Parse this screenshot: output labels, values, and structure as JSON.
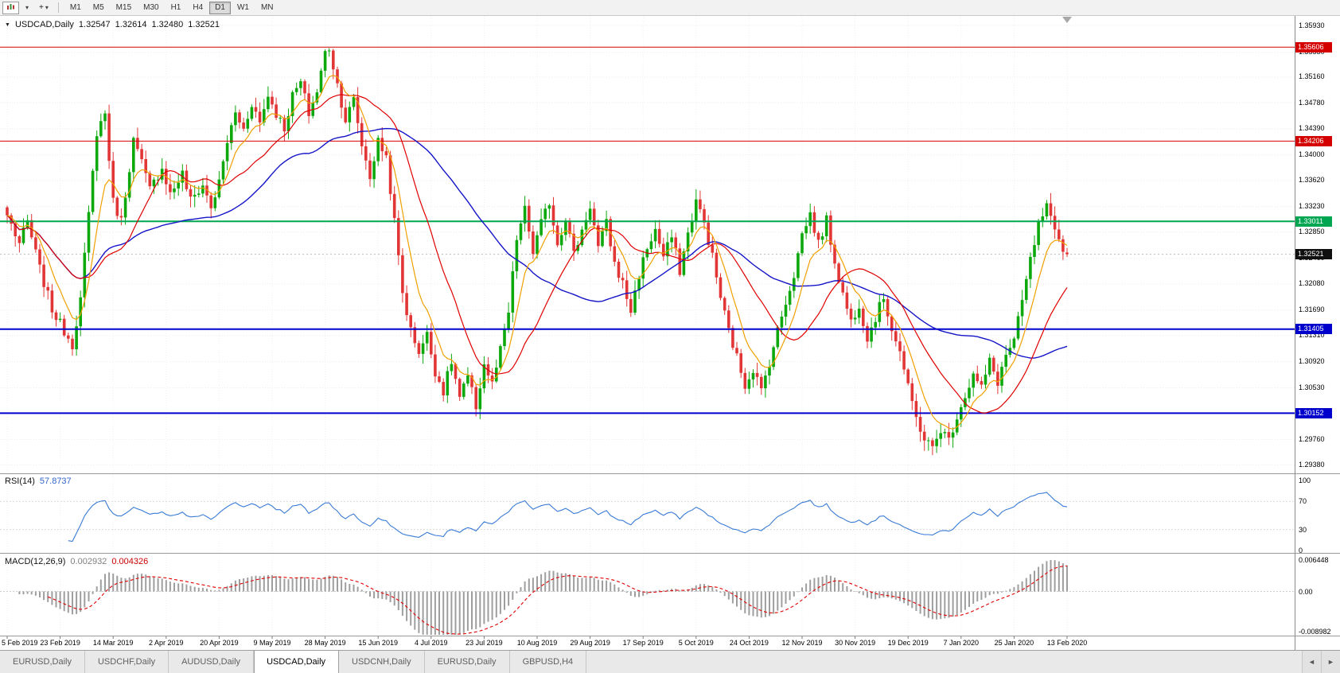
{
  "toolbar": {
    "dropdown_glyph": "▾",
    "cursor_glyph": "+",
    "timeframes": [
      {
        "label": "M1",
        "active": false
      },
      {
        "label": "M5",
        "active": false
      },
      {
        "label": "M15",
        "active": false
      },
      {
        "label": "M30",
        "active": false
      },
      {
        "label": "H1",
        "active": false
      },
      {
        "label": "H4",
        "active": false
      },
      {
        "label": "D1",
        "active": true
      },
      {
        "label": "W1",
        "active": false
      },
      {
        "label": "MN",
        "active": false
      }
    ]
  },
  "chart_header": {
    "collapse_glyph": "▼",
    "symbol": "USDCAD,Daily",
    "open": "1.32547",
    "high": "1.32614",
    "low": "1.32480",
    "close": "1.32521"
  },
  "price_axis": {
    "ticks": [
      "1.35930",
      "1.35530",
      "1.35160",
      "1.34780",
      "1.34390",
      "1.34000",
      "1.33620",
      "1.33230",
      "1.32850",
      "1.32460",
      "1.32080",
      "1.31690",
      "1.31310",
      "1.30920",
      "1.30530",
      "1.30150",
      "1.29760",
      "1.29380"
    ]
  },
  "levels": [
    {
      "value": "1.35606",
      "color": "#d40000",
      "width": 1,
      "type": "resistance"
    },
    {
      "value": "1.34206",
      "color": "#d40000",
      "width": 1,
      "type": "resistance"
    },
    {
      "value": "1.33011",
      "color": "#00a651",
      "width": 2,
      "type": "resistance"
    },
    {
      "value": "1.31405",
      "color": "#0000cd",
      "width": 2,
      "type": "support"
    },
    {
      "value": "1.30152",
      "color": "#0000cd",
      "width": 2,
      "type": "support"
    }
  ],
  "current_price": {
    "value": "1.32521",
    "badge_color": "#101010"
  },
  "rsi_panel": {
    "name": "RSI(14)",
    "value": "57.8737",
    "axis_ticks": [
      "100",
      "70",
      "30",
      "0"
    ]
  },
  "macd_panel": {
    "name": "MACD(12,26,9)",
    "main_value": "0.002932",
    "signal_value": "0.004326",
    "axis_ticks": [
      "0.006448",
      "0.00",
      "-0.008982"
    ]
  },
  "date_axis": [
    "5 Feb 2019",
    "23 Feb 2019",
    "14 Mar 2019",
    "2 Apr 2019",
    "20 Apr 2019",
    "9 May 2019",
    "28 May 2019",
    "15 Jun 2019",
    "4 Jul 2019",
    "23 Jul 2019",
    "10 Aug 2019",
    "29 Aug 2019",
    "17 Sep 2019",
    "5 Oct 2019",
    "24 Oct 2019",
    "12 Nov 2019",
    "30 Nov 2019",
    "19 Dec 2019",
    "7 Jan 2020",
    "25 Jan 2020",
    "13 Feb 2020"
  ],
  "tabs": {
    "items": [
      {
        "label": "EURUSD,Daily",
        "active": false
      },
      {
        "label": "USDCHF,Daily",
        "active": false
      },
      {
        "label": "AUDUSD,Daily",
        "active": false
      },
      {
        "label": "USDCAD,Daily",
        "active": true
      },
      {
        "label": "USDCNH,Daily",
        "active": false
      },
      {
        "label": "EURUSD,Daily",
        "active": false
      },
      {
        "label": "GBPUSD,H4",
        "active": false
      }
    ],
    "scroll_left_glyph": "◄",
    "scroll_right_glyph": "►"
  },
  "chart_data": {
    "type": "candlestick",
    "symbol": "USDCAD",
    "timeframe": "Daily",
    "num_candles": 261,
    "visible_range": {
      "price_top": 1.3593,
      "price_bottom": 1.2938,
      "date_start": "5 Feb 2019",
      "date_end": "13 Feb 2020"
    },
    "date_tick_every": 13,
    "last_candle": {
      "open": 1.32547,
      "high": 1.32614,
      "low": 1.3248,
      "close": 1.32521
    },
    "anchors": [
      [
        0,
        1.331
      ],
      [
        3,
        1.3268
      ],
      [
        5,
        1.33
      ],
      [
        8,
        1.323
      ],
      [
        11,
        1.317
      ],
      [
        13,
        1.3148
      ],
      [
        16,
        1.3118
      ],
      [
        18,
        1.3185
      ],
      [
        20,
        1.331
      ],
      [
        22,
        1.3435
      ],
      [
        24,
        1.3462
      ],
      [
        26,
        1.333
      ],
      [
        28,
        1.3302
      ],
      [
        31,
        1.3422
      ],
      [
        33,
        1.3388
      ],
      [
        35,
        1.3348
      ],
      [
        38,
        1.3382
      ],
      [
        40,
        1.3342
      ],
      [
        43,
        1.3372
      ],
      [
        45,
        1.3332
      ],
      [
        48,
        1.3355
      ],
      [
        50,
        1.3322
      ],
      [
        52,
        1.3358
      ],
      [
        54,
        1.342
      ],
      [
        56,
        1.3462
      ],
      [
        58,
        1.3438
      ],
      [
        60,
        1.3478
      ],
      [
        62,
        1.3448
      ],
      [
        64,
        1.349
      ],
      [
        66,
        1.3462
      ],
      [
        68,
        1.344
      ],
      [
        70,
        1.3488
      ],
      [
        72,
        1.3508
      ],
      [
        74,
        1.3462
      ],
      [
        76,
        1.3495
      ],
      [
        78,
        1.3552
      ],
      [
        79,
        1.356
      ],
      [
        81,
        1.3505
      ],
      [
        83,
        1.3452
      ],
      [
        85,
        1.3482
      ],
      [
        87,
        1.3415
      ],
      [
        89,
        1.3368
      ],
      [
        91,
        1.342
      ],
      [
        93,
        1.3398
      ],
      [
        95,
        1.33
      ],
      [
        97,
        1.3195
      ],
      [
        99,
        1.3138
      ],
      [
        101,
        1.3108
      ],
      [
        103,
        1.3132
      ],
      [
        105,
        1.3078
      ],
      [
        107,
        1.3048
      ],
      [
        109,
        1.3092
      ],
      [
        111,
        1.3038
      ],
      [
        113,
        1.3068
      ],
      [
        115,
        1.3025
      ],
      [
        117,
        1.3088
      ],
      [
        119,
        1.3058
      ],
      [
        121,
        1.3108
      ],
      [
        123,
        1.3165
      ],
      [
        125,
        1.3275
      ],
      [
        127,
        1.3318
      ],
      [
        129,
        1.3255
      ],
      [
        131,
        1.3298
      ],
      [
        133,
        1.333
      ],
      [
        135,
        1.3268
      ],
      [
        137,
        1.3308
      ],
      [
        139,
        1.3252
      ],
      [
        141,
        1.3288
      ],
      [
        143,
        1.3325
      ],
      [
        145,
        1.3262
      ],
      [
        147,
        1.3298
      ],
      [
        149,
        1.3238
      ],
      [
        151,
        1.3208
      ],
      [
        153,
        1.3168
      ],
      [
        155,
        1.3222
      ],
      [
        157,
        1.3262
      ],
      [
        159,
        1.3288
      ],
      [
        161,
        1.3248
      ],
      [
        163,
        1.3278
      ],
      [
        165,
        1.3228
      ],
      [
        167,
        1.3282
      ],
      [
        169,
        1.3332
      ],
      [
        171,
        1.3298
      ],
      [
        173,
        1.3248
      ],
      [
        175,
        1.3188
      ],
      [
        177,
        1.3138
      ],
      [
        179,
        1.3098
      ],
      [
        181,
        1.3058
      ],
      [
        183,
        1.3082
      ],
      [
        185,
        1.3048
      ],
      [
        187,
        1.3092
      ],
      [
        189,
        1.3138
      ],
      [
        191,
        1.3182
      ],
      [
        193,
        1.3222
      ],
      [
        195,
        1.3282
      ],
      [
        197,
        1.3312
      ],
      [
        199,
        1.3268
      ],
      [
        201,
        1.3302
      ],
      [
        203,
        1.3242
      ],
      [
        205,
        1.3192
      ],
      [
        207,
        1.3152
      ],
      [
        209,
        1.3178
      ],
      [
        211,
        1.3128
      ],
      [
        213,
        1.3158
      ],
      [
        215,
        1.3188
      ],
      [
        217,
        1.3142
      ],
      [
        219,
        1.3108
      ],
      [
        221,
        1.3052
      ],
      [
        223,
        1.3008
      ],
      [
        225,
        1.2978
      ],
      [
        227,
        1.2962
      ],
      [
        229,
        1.2992
      ],
      [
        231,
        1.2975
      ],
      [
        233,
        1.3012
      ],
      [
        235,
        1.3042
      ],
      [
        237,
        1.3072
      ],
      [
        239,
        1.3052
      ],
      [
        241,
        1.3092
      ],
      [
        243,
        1.3062
      ],
      [
        245,
        1.3102
      ],
      [
        247,
        1.3122
      ],
      [
        249,
        1.3182
      ],
      [
        251,
        1.3242
      ],
      [
        253,
        1.3295
      ],
      [
        255,
        1.3322
      ],
      [
        257,
        1.3282
      ],
      [
        259,
        1.3255
      ],
      [
        260,
        1.32521
      ]
    ],
    "indicators": {
      "moving_averages": [
        {
          "period": 8,
          "color": "#f0a000"
        },
        {
          "period": 20,
          "color": "#e00000"
        },
        {
          "period": 50,
          "color": "#1414c8"
        }
      ],
      "rsi": {
        "period": 14,
        "current": 57.8737,
        "color": "#3a7bd5",
        "levels": [
          70,
          30
        ]
      },
      "macd": {
        "fast": 12,
        "slow": 26,
        "signal": 9,
        "current_main": 0.002932,
        "current_signal": 0.004326,
        "axis_max": 0.006448,
        "axis_min": -0.008982
      }
    },
    "colors": {
      "up": "#0ca80c",
      "down": "#e23535",
      "macd_hist": "#9e9e9e",
      "macd_signal": "#e00000",
      "rsi": "#3a7bd5"
    }
  }
}
